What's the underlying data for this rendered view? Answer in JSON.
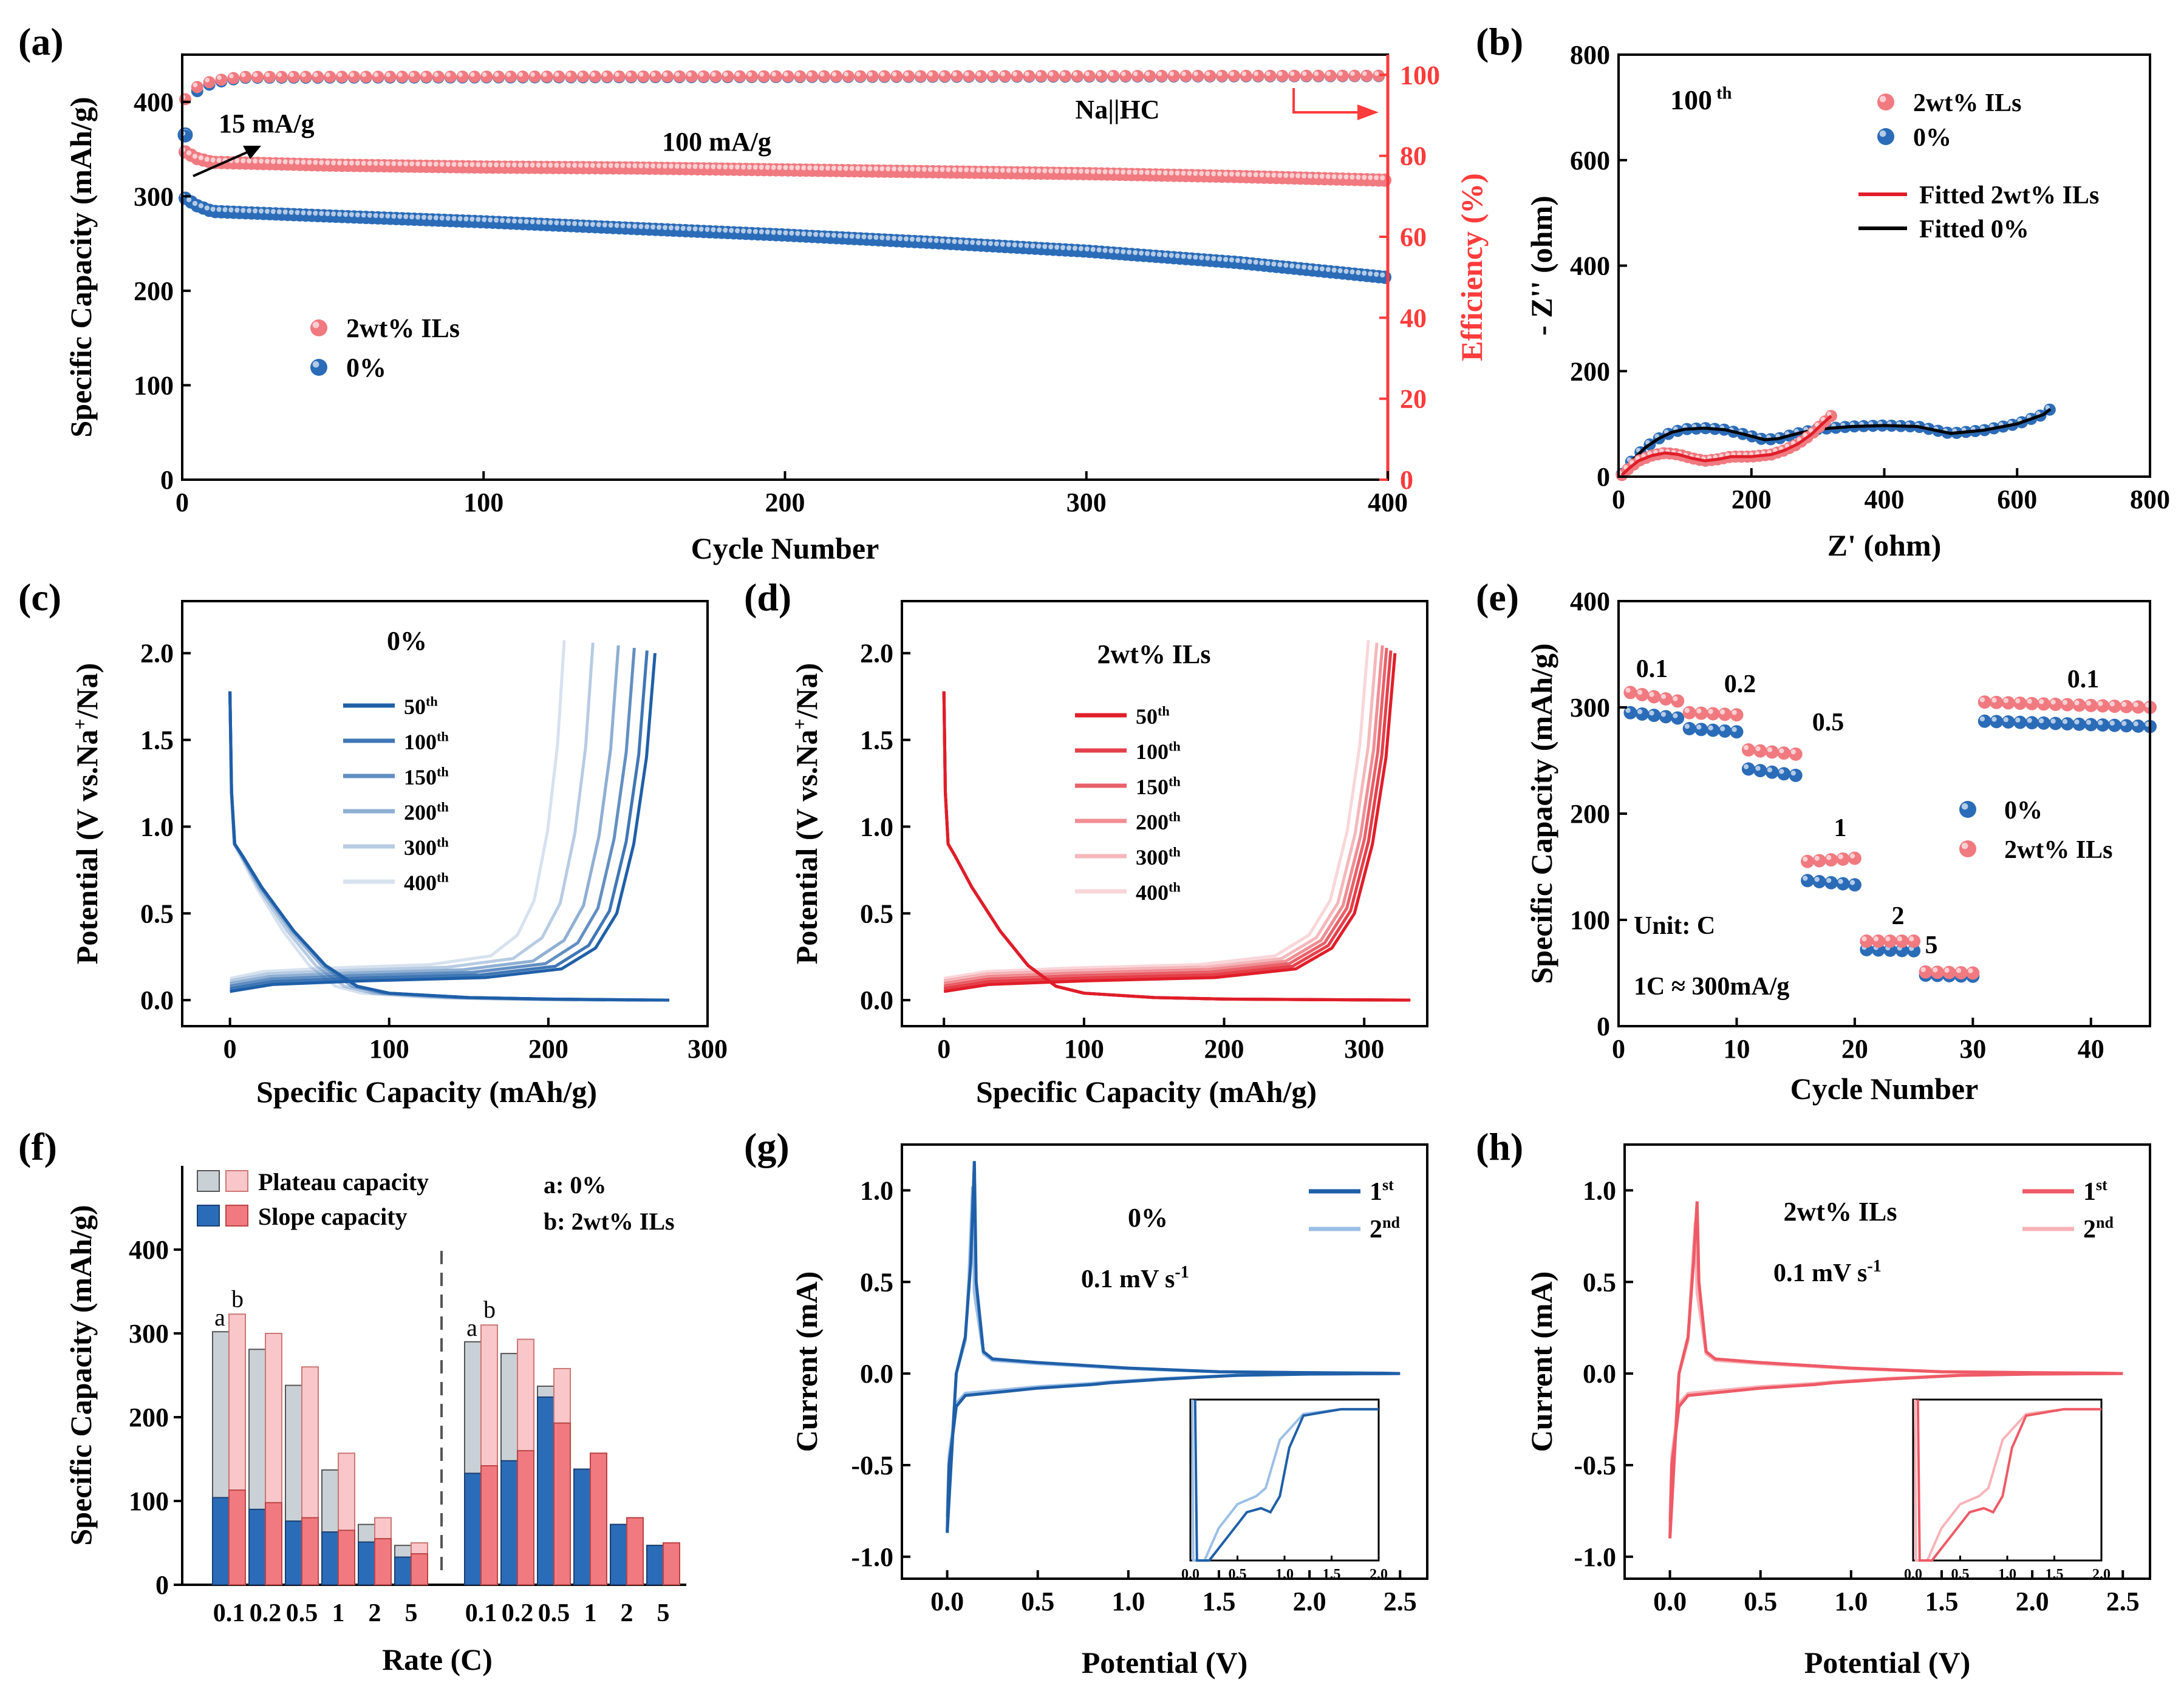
{
  "colors": {
    "blue": "#1f5fa8",
    "blue_marker": "#2b6cb8",
    "red": "#f07a80",
    "red_axis": "#ff3b3b",
    "red_line": "#e01e2a",
    "grey_bar": "#c9d0d6",
    "pink_bar": "#f9c7c9"
  },
  "chart_data": [
    {
      "panel": "(a)",
      "type": "scatter",
      "title": "",
      "xlabel": "Cycle Number",
      "ylabel": "Specific Capacity (mAh/g)",
      "y2label": "Efficiency (%)",
      "xlim": [
        0,
        400
      ],
      "ylim": [
        0,
        450
      ],
      "y2lim": [
        0,
        105
      ],
      "xticks": [
        0,
        100,
        200,
        300,
        400
      ],
      "yticks": [
        0,
        100,
        200,
        300,
        400
      ],
      "y2ticks": [
        0,
        20,
        40,
        60,
        80,
        100
      ],
      "annotations": [
        "15 mA/g",
        "100 mA/g",
        "Na||HC"
      ],
      "legend": [
        "2wt%  ILs",
        "0%"
      ],
      "series": [
        {
          "name": "2wt%  ILs",
          "x": [
            1,
            5,
            10,
            50,
            100,
            150,
            200,
            250,
            300,
            350,
            400
          ],
          "y": [
            347,
            340,
            336,
            333,
            331,
            330,
            328,
            326,
            324,
            321,
            317
          ]
        },
        {
          "name": "0%",
          "x": [
            1,
            5,
            10,
            50,
            100,
            150,
            200,
            250,
            300,
            350,
            400
          ],
          "y": [
            298,
            290,
            284,
            279,
            273,
            266,
            259,
            251,
            242,
            230,
            214
          ]
        },
        {
          "name": "Efficiency 2wt%  ILs",
          "axis": "y2",
          "x": [
            1,
            5,
            10,
            20,
            400
          ],
          "y": [
            94,
            97,
            98.5,
            99.5,
            99.8
          ]
        },
        {
          "name": "Efficiency 0%",
          "axis": "y2",
          "x": [
            1,
            5,
            10,
            20,
            400
          ],
          "y": [
            85,
            96,
            98,
            99.3,
            99.7
          ]
        }
      ]
    },
    {
      "panel": "(b)",
      "type": "scatter",
      "xlabel": "Z' (ohm)",
      "ylabel": "- Z'' (ohm)",
      "xlim": [
        0,
        800
      ],
      "ylim": [
        0,
        800
      ],
      "xticks": [
        0,
        200,
        400,
        600,
        800
      ],
      "yticks": [
        0,
        200,
        400,
        600,
        800
      ],
      "annotation": "100 th",
      "legend": [
        "2wt%  ILs",
        "0%",
        "Fitted 2wt%  ILs",
        "Fitted 0%"
      ],
      "series": [
        {
          "name": "0%",
          "x": [
            5,
            20,
            40,
            60,
            80,
            100,
            130,
            160,
            190,
            220,
            240,
            270,
            300,
            350,
            400,
            450,
            500,
            550,
            600,
            640,
            650
          ],
          "y": [
            5,
            30,
            55,
            72,
            84,
            90,
            92,
            89,
            80,
            70,
            72,
            82,
            90,
            95,
            97,
            95,
            82,
            88,
            100,
            118,
            128
          ]
        },
        {
          "name": "2wt%  ILs",
          "x": [
            5,
            15,
            30,
            50,
            70,
            90,
            110,
            130,
            150,
            170,
            200,
            230,
            250,
            270,
            290,
            305,
            320
          ],
          "y": [
            3,
            15,
            30,
            40,
            45,
            42,
            35,
            30,
            33,
            38,
            38,
            42,
            50,
            62,
            80,
            98,
            115
          ]
        }
      ]
    },
    {
      "panel": "(c)",
      "type": "line",
      "annotation": "0%",
      "xlabel": "Specific Capacity (mAh/g)",
      "ylabel": "Potential (V vs.Na+/Na)",
      "xlim": [
        -30,
        300
      ],
      "ylim": [
        -0.15,
        2.3
      ],
      "xticks": [
        0,
        100,
        200,
        300
      ],
      "yticks": [
        0.0,
        0.5,
        1.0,
        1.5,
        2.0
      ],
      "legend": [
        "50th",
        "100th",
        "150th",
        "200th",
        "300th",
        "400th"
      ],
      "series": [
        {
          "name": "50th",
          "discharge_end": 276,
          "charge_end": 267
        },
        {
          "name": "100th",
          "discharge_end": 270,
          "charge_end": 262
        },
        {
          "name": "150th",
          "discharge_end": 262,
          "charge_end": 254
        },
        {
          "name": "200th",
          "discharge_end": 252,
          "charge_end": 244
        },
        {
          "name": "300th",
          "discharge_end": 236,
          "charge_end": 228
        },
        {
          "name": "400th",
          "discharge_end": 218,
          "charge_end": 210
        }
      ]
    },
    {
      "panel": "(d)",
      "type": "line",
      "annotation": "2wt% ILs",
      "xlabel": "Specific Capacity (mAh/g)",
      "ylabel": "Potential (V vs.Na+/Na)",
      "xlim": [
        -30,
        345
      ],
      "ylim": [
        -0.15,
        2.3
      ],
      "xticks": [
        0,
        100,
        200,
        300
      ],
      "yticks": [
        0.0,
        0.5,
        1.0,
        1.5,
        2.0
      ],
      "legend": [
        "50th",
        "100th",
        "150th",
        "200th",
        "300th",
        "400th"
      ],
      "series": [
        {
          "name": "50th",
          "discharge_end": 333,
          "charge_end": 322
        },
        {
          "name": "100th",
          "discharge_end": 330,
          "charge_end": 319
        },
        {
          "name": "150th",
          "discharge_end": 327,
          "charge_end": 316
        },
        {
          "name": "200th",
          "discharge_end": 324,
          "charge_end": 313
        },
        {
          "name": "300th",
          "discharge_end": 320,
          "charge_end": 309
        },
        {
          "name": "400th",
          "discharge_end": 314,
          "charge_end": 303
        }
      ]
    },
    {
      "panel": "(e)",
      "type": "scatter",
      "xlabel": "Cycle Number",
      "ylabel": "Specific Capacity (mAh/g)",
      "xlim": [
        0,
        45
      ],
      "ylim": [
        0,
        400
      ],
      "xticks": [
        0,
        10,
        20,
        30,
        40
      ],
      "yticks": [
        0,
        100,
        200,
        300,
        400
      ],
      "rate_labels": [
        "0.1",
        "0.2",
        "0.5",
        "1",
        "2",
        "5",
        "0.1"
      ],
      "annotations": [
        "Unit: C",
        "1C ≈ 300mA/g"
      ],
      "legend": [
        "0%",
        "2wt% ILs"
      ],
      "series": [
        {
          "name": "0%",
          "segments": [
            [
              1,
              5,
              295,
              290
            ],
            [
              6,
              10,
              280,
              277
            ],
            [
              11,
              15,
              242,
              236
            ],
            [
              16,
              20,
              137,
              133
            ],
            [
              21,
              25,
              72,
              71
            ],
            [
              26,
              30,
              48,
              47
            ],
            [
              31,
              45,
              287,
              282
            ]
          ]
        },
        {
          "name": "2wt% ILs",
          "segments": [
            [
              1,
              5,
              314,
              306
            ],
            [
              6,
              10,
              295,
              293
            ],
            [
              11,
              15,
              260,
              256
            ],
            [
              16,
              20,
              155,
              158
            ],
            [
              21,
              25,
              80,
              80
            ],
            [
              26,
              30,
              51,
              50
            ],
            [
              31,
              45,
              305,
              300
            ]
          ]
        }
      ]
    },
    {
      "panel": "(f)",
      "type": "bar",
      "xlabel": "Rate (C)",
      "ylabel": "Specific Capacity (mAh/g)",
      "ylim": [
        0,
        500
      ],
      "yticks": [
        0,
        100,
        200,
        300,
        400
      ],
      "categories": [
        "0.1",
        "0.2",
        "0.5",
        "1",
        "2",
        "5"
      ],
      "legend": [
        "Plateau capacity",
        "Slope capacity"
      ],
      "key": [
        "a: 0%",
        "b: 2wt% ILs"
      ],
      "bar_letters": [
        "a",
        "b"
      ],
      "groups": [
        {
          "name": "discharge",
          "a_total": [
            302,
            281,
            238,
            137,
            72,
            47
          ],
          "a_slope": [
            104,
            90,
            76,
            63,
            51,
            33
          ],
          "b_total": [
            323,
            300,
            260,
            157,
            80,
            50
          ],
          "b_slope": [
            113,
            98,
            80,
            65,
            55,
            37
          ]
        },
        {
          "name": "charge",
          "a_total": [
            290,
            276,
            237,
            138,
            72,
            47
          ],
          "a_slope": [
            133,
            148,
            224,
            138,
            72,
            47
          ],
          "b_total": [
            310,
            293,
            258,
            157,
            80,
            50
          ],
          "b_slope": [
            142,
            160,
            193,
            157,
            80,
            50
          ]
        }
      ]
    },
    {
      "panel": "(g)",
      "type": "line",
      "annotation": "0%",
      "scan_rate": "0.1 mV s-1",
      "xlabel": "Potential (V)",
      "ylabel": "Current (mA)",
      "xlim": [
        -0.25,
        2.65
      ],
      "ylim": [
        -1.12,
        1.25
      ],
      "xticks": [
        0.0,
        0.5,
        1.0,
        1.5,
        2.0,
        2.5
      ],
      "yticks": [
        -1.0,
        -0.5,
        0.0,
        0.5,
        1.0
      ],
      "legend": [
        "1st",
        "2nd"
      ],
      "peak_current": 1.16,
      "min_current": -0.87,
      "inset_xticks": [
        "0.0",
        "0.5",
        "1.0",
        "1.5",
        "2.0"
      ]
    },
    {
      "panel": "(h)",
      "type": "line",
      "annotation": "2wt% ILs",
      "scan_rate": "0.1 mV s-1",
      "xlabel": "Potential (V)",
      "ylabel": "Current (mA)",
      "xlim": [
        -0.25,
        2.65
      ],
      "ylim": [
        -1.12,
        1.25
      ],
      "xticks": [
        0.0,
        0.5,
        1.0,
        1.5,
        2.0,
        2.5
      ],
      "yticks": [
        -1.0,
        -0.5,
        0.0,
        0.5,
        1.0
      ],
      "legend": [
        "1st",
        "2nd"
      ],
      "peak_current": 0.94,
      "min_current": -0.9,
      "inset_xticks": [
        "0.0",
        "0.5",
        "1.0",
        "1.5",
        "2.0"
      ]
    }
  ],
  "panel_labels": [
    "(a)",
    "(b)",
    "(c)",
    "(d)",
    "(e)",
    "(f)",
    "(g)",
    "(h)"
  ]
}
